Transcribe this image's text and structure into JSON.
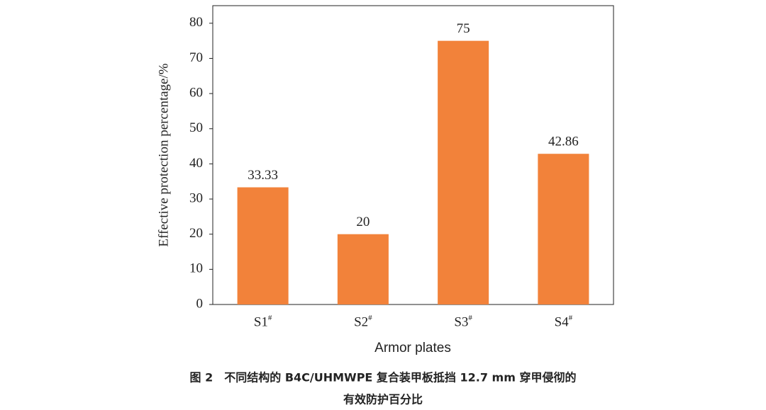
{
  "chart_data": {
    "type": "bar",
    "ylabel": "Effective protection percentage/%",
    "xlabel": "Armor plates",
    "caption": [
      "图 2　不同结构的 B4C/UHMWPE 复合装甲板抵挡 12.7 mm 穿甲侵彻的",
      "有效防护百分比"
    ],
    "categories": [
      "S1#",
      "S2#",
      "S3#",
      "S4#"
    ],
    "values": [
      33.33,
      20,
      75,
      42.86
    ],
    "color": "#f2823a",
    "ylim": [
      0,
      85
    ],
    "yticks": [
      0,
      10,
      20,
      30,
      40,
      50,
      60,
      70,
      80
    ],
    "grid": false
  }
}
